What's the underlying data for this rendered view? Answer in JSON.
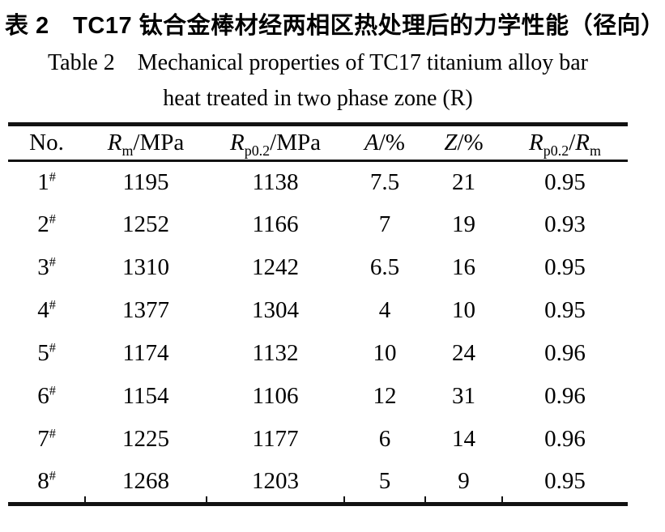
{
  "caption": {
    "zh": "表 2　TC17 钛合金棒材经两相区热处理后的力学性能（径向）",
    "en_line1": "Table 2 Mechanical properties of TC17 titanium alloy bar",
    "en_line2": "heat treated in two phase zone (R)"
  },
  "table": {
    "columns": [
      {
        "id": "no",
        "segments": [
          {
            "t": "No."
          }
        ]
      },
      {
        "id": "rm",
        "segments": [
          {
            "t": "R",
            "italic": true
          },
          {
            "t": "m",
            "sub": true
          },
          {
            "t": "/MPa"
          }
        ]
      },
      {
        "id": "rp02",
        "segments": [
          {
            "t": "R",
            "italic": true
          },
          {
            "t": "p0.2",
            "sub": true
          },
          {
            "t": "/MPa"
          }
        ]
      },
      {
        "id": "a",
        "segments": [
          {
            "t": "A",
            "italic": true
          },
          {
            "t": "/%"
          }
        ]
      },
      {
        "id": "z",
        "segments": [
          {
            "t": "Z",
            "italic": true
          },
          {
            "t": "/%"
          }
        ]
      },
      {
        "id": "ratio",
        "segments": [
          {
            "t": "R",
            "italic": true
          },
          {
            "t": "p0.2",
            "sub": true
          },
          {
            "t": "/"
          },
          {
            "t": "R",
            "italic": true
          },
          {
            "t": "m",
            "sub": true
          }
        ]
      }
    ],
    "row_number_suffix": "#",
    "rows": [
      {
        "no": "1",
        "values": [
          "1195",
          "1138",
          "7.5",
          "21",
          "0.95"
        ]
      },
      {
        "no": "2",
        "values": [
          "1252",
          "1166",
          "7",
          "19",
          "0.93"
        ]
      },
      {
        "no": "3",
        "values": [
          "1310",
          "1242",
          "6.5",
          "16",
          "0.95"
        ]
      },
      {
        "no": "4",
        "values": [
          "1377",
          "1304",
          "4",
          "10",
          "0.95"
        ]
      },
      {
        "no": "5",
        "values": [
          "1174",
          "1132",
          "10",
          "24",
          "0.96"
        ]
      },
      {
        "no": "6",
        "values": [
          "1154",
          "1106",
          "12",
          "31",
          "0.96"
        ]
      },
      {
        "no": "7",
        "values": [
          "1225",
          "1177",
          "6",
          "14",
          "0.96"
        ]
      },
      {
        "no": "8",
        "values": [
          "1268",
          "1203",
          "5",
          "9",
          "0.95"
        ]
      }
    ]
  },
  "colors": {
    "text": "#000000",
    "rule": "#121212",
    "background": "#ffffff"
  }
}
